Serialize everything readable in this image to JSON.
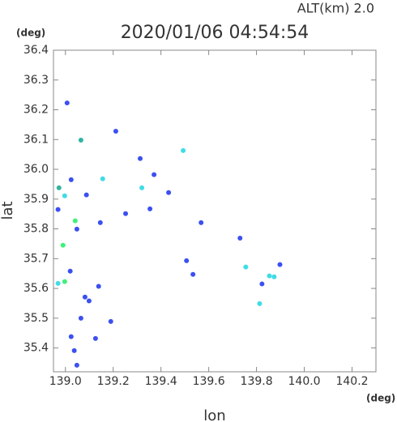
{
  "chart_data": {
    "type": "scatter",
    "title": "2020/01/06 04:54:54",
    "subtitle": "ALT(km)  2.0",
    "x_label": "lon",
    "y_label": "lat",
    "x_unit": "(deg)",
    "y_unit": "(deg)",
    "xlim": [
      138.95,
      140.3
    ],
    "ylim": [
      35.32,
      36.4
    ],
    "xticks": [
      {
        "value": 139,
        "label": "139.0"
      },
      139.2,
      139.4,
      139.6,
      139.8,
      {
        "value": 140,
        "label": "140.0"
      },
      140.2
    ],
    "yticks": [
      35.4,
      35.5,
      35.6,
      35.7,
      35.8,
      35.9,
      {
        "value": 36,
        "label": "36.0"
      },
      36.1,
      36.2,
      36.3,
      36.4
    ],
    "series": [
      {
        "color": "#3c50f0",
        "x": [
          139.007,
          139.211,
          139.024,
          139.088,
          138.969,
          139.048,
          139.146,
          139.02,
          139.082,
          139.099,
          139.139,
          139.065,
          139.19,
          139.024,
          139.126,
          139.037,
          139.048,
          139.313,
          139.371,
          139.354,
          139.252,
          139.432,
          139.534,
          139.823,
          139.898,
          139.507,
          139.568,
          139.731
        ],
        "y": [
          36.223,
          36.128,
          35.965,
          35.914,
          35.865,
          35.799,
          35.821,
          35.658,
          35.571,
          35.558,
          35.607,
          35.5,
          35.489,
          35.438,
          35.432,
          35.391,
          35.342,
          36.036,
          35.982,
          35.867,
          35.851,
          35.922,
          35.647,
          35.615,
          35.68,
          35.693,
          35.821,
          35.769
        ]
      },
      {
        "color": "#40dce6",
        "x": [
          139.156,
          138.997,
          138.969,
          139.32,
          139.493,
          139.755,
          139.854,
          139.813,
          139.874
        ],
        "y": [
          35.968,
          35.911,
          35.617,
          35.938,
          36.063,
          35.672,
          35.642,
          35.549,
          35.639
        ]
      },
      {
        "color": "#30b4a0",
        "x": [
          139.065,
          138.973
        ],
        "y": [
          36.098,
          35.938
        ]
      },
      {
        "color": "#40f07c",
        "x": [
          139.041,
          138.99,
          138.997
        ],
        "y": [
          35.827,
          35.745,
          35.623
        ]
      }
    ]
  }
}
